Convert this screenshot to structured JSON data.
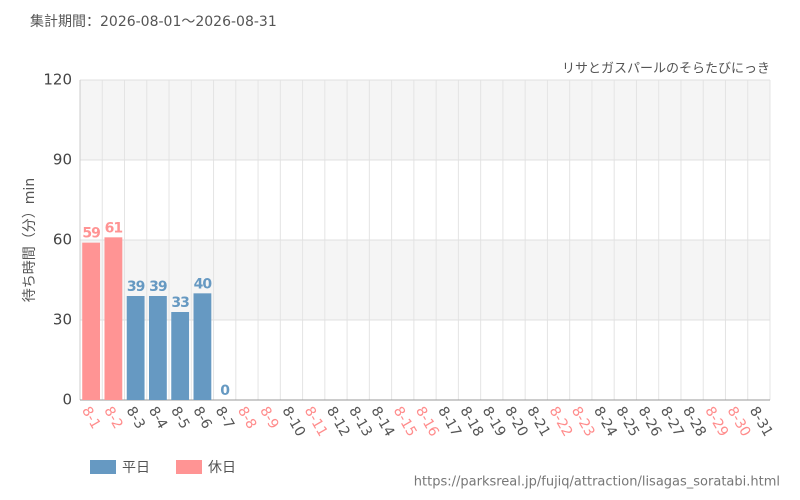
{
  "header": "集計期間：2026-08-01～2026-08-31",
  "chart_data": {
    "type": "bar",
    "subtitle": "リサとガスパールのそらたびにっき",
    "y_label": "待ち時間（分）min",
    "categories": [
      "8-1",
      "8-2",
      "8-3",
      "8-4",
      "8-5",
      "8-6",
      "8-7",
      "8-8",
      "8-9",
      "8-10",
      "8-11",
      "8-12",
      "8-13",
      "8-14",
      "8-15",
      "8-16",
      "8-17",
      "8-18",
      "8-19",
      "8-20",
      "8-21",
      "8-22",
      "8-23",
      "8-24",
      "8-25",
      "8-26",
      "8-27",
      "8-28",
      "8-29",
      "8-30",
      "8-31"
    ],
    "category_colors": [
      "#ff8c8c",
      "#ff8c8c",
      "#555555",
      "#555555",
      "#555555",
      "#555555",
      "#555555",
      "#ff8c8c",
      "#ff8c8c",
      "#555555",
      "#ff8c8c",
      "#555555",
      "#555555",
      "#555555",
      "#ff8c8c",
      "#ff8c8c",
      "#555555",
      "#555555",
      "#555555",
      "#555555",
      "#555555",
      "#ff8c8c",
      "#ff8c8c",
      "#555555",
      "#555555",
      "#555555",
      "#555555",
      "#555555",
      "#ff8c8c",
      "#ff8c8c",
      "#555555"
    ],
    "series": [
      {
        "name": "平日",
        "color": "#6699c2",
        "values": [
          null,
          null,
          39,
          39,
          33,
          40,
          0,
          null,
          null,
          null,
          null,
          null,
          null,
          null,
          null,
          null,
          null,
          null,
          null,
          null,
          null,
          null,
          null,
          null,
          null,
          null,
          null,
          null,
          null,
          null,
          null
        ]
      },
      {
        "name": "休日",
        "color": "#ff9494",
        "values": [
          59,
          61,
          null,
          null,
          null,
          null,
          null,
          null,
          null,
          null,
          null,
          null,
          null,
          null,
          null,
          null,
          null,
          null,
          null,
          null,
          null,
          null,
          null,
          null,
          null,
          null,
          null,
          null,
          null,
          null,
          null
        ]
      }
    ],
    "ylim": [
      0,
      120
    ],
    "yticks": [
      0,
      30,
      60,
      90,
      120
    ],
    "grid": true,
    "source": "https://parksreal.jp/fujiq/attraction/lisagas_soratabi.html"
  }
}
